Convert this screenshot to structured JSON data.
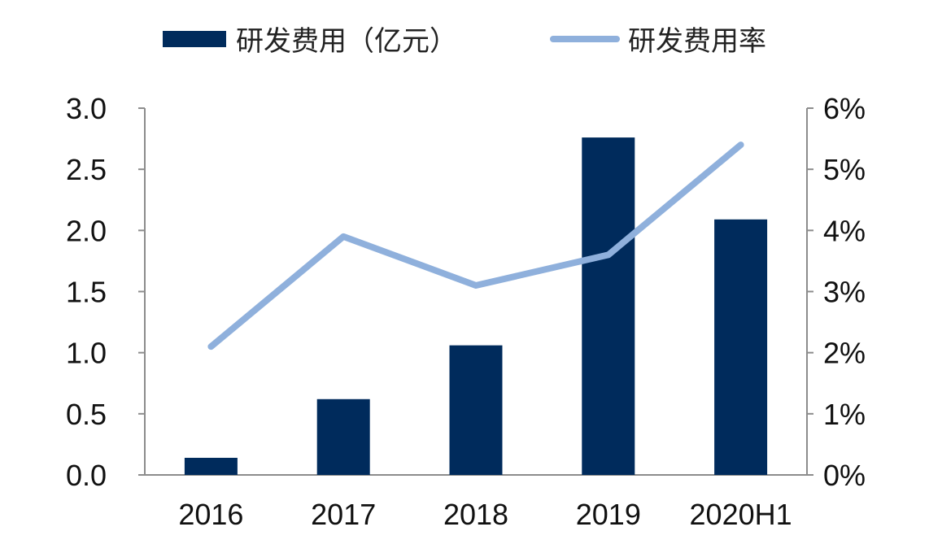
{
  "chart_data": {
    "type": "bar",
    "categories": [
      "2016",
      "2017",
      "2018",
      "2019",
      "2020H1"
    ],
    "series": [
      {
        "name": "研发费用（亿元）",
        "type": "bar",
        "axis": "left",
        "color": "#002b5c",
        "values": [
          0.14,
          0.62,
          1.06,
          2.76,
          2.09
        ]
      },
      {
        "name": "研发费用率",
        "type": "line",
        "axis": "right",
        "color": "#8fb0dc",
        "values": [
          0.021,
          0.039,
          0.031,
          0.036,
          0.054
        ]
      }
    ],
    "y_left": {
      "range": [
        0,
        3.0
      ],
      "ticks": [
        "0.0",
        "0.5",
        "1.0",
        "1.5",
        "2.0",
        "2.5",
        "3.0"
      ]
    },
    "y_right": {
      "range": [
        0,
        0.06
      ],
      "ticks": [
        "0%",
        "1%",
        "2%",
        "3%",
        "4%",
        "5%",
        "6%"
      ]
    },
    "grid": false,
    "legend_position": "top"
  }
}
